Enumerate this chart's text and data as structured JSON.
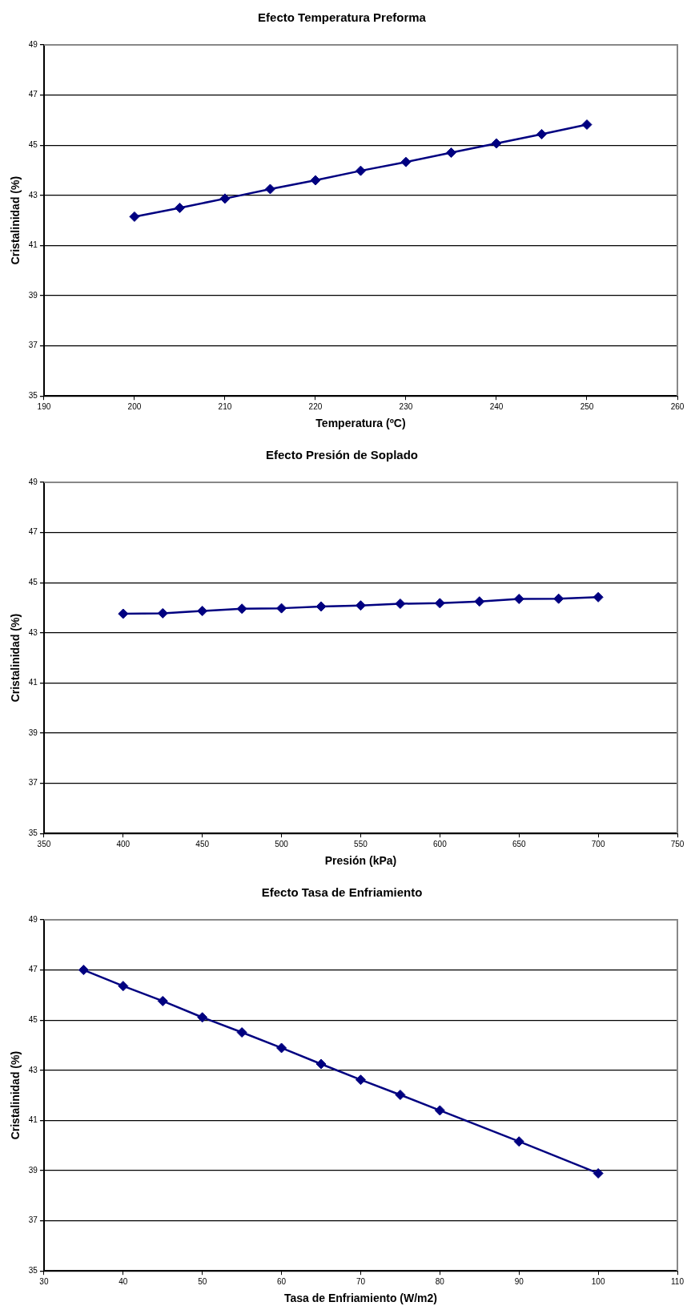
{
  "chart_data": [
    {
      "type": "line",
      "title": "Efecto Temperatura Preforma",
      "xlabel": "Temperatura (ºC)",
      "ylabel": "Cristalinidad (%)",
      "x": [
        200,
        205,
        210,
        215,
        220,
        225,
        230,
        235,
        240,
        245,
        250
      ],
      "series": [
        {
          "color": "#000080",
          "values": [
            42.15,
            42.5,
            42.87,
            43.25,
            43.6,
            43.98,
            44.33,
            44.7,
            45.07,
            45.44,
            45.82
          ]
        }
      ],
      "xlim": [
        190,
        260
      ],
      "xticks": [
        190,
        200,
        210,
        220,
        230,
        240,
        250,
        260
      ],
      "ylim": [
        35,
        49
      ],
      "yticks": [
        35,
        37,
        39,
        41,
        43,
        45,
        47,
        49
      ],
      "grid": "y",
      "legend": false,
      "marker": "diamond",
      "line_style": "solid"
    },
    {
      "type": "line",
      "title": "Efecto Presión de Soplado",
      "xlabel": "Presión (kPa)",
      "ylabel": "Cristalinidad (%)",
      "x": [
        400,
        425,
        450,
        475,
        500,
        525,
        550,
        575,
        600,
        625,
        650,
        675,
        700
      ],
      "series": [
        {
          "color": "#000080",
          "values": [
            43.76,
            43.78,
            43.87,
            43.96,
            43.98,
            44.05,
            44.09,
            44.16,
            44.18,
            44.25,
            44.35,
            44.36,
            44.42
          ]
        }
      ],
      "xlim": [
        350,
        750
      ],
      "xticks": [
        350,
        400,
        450,
        500,
        550,
        600,
        650,
        700,
        750
      ],
      "ylim": [
        35,
        49
      ],
      "yticks": [
        35,
        37,
        39,
        41,
        43,
        45,
        47,
        49
      ],
      "grid": "y",
      "legend": false,
      "marker": "diamond",
      "line_style": "solid"
    },
    {
      "type": "line",
      "title": "Efecto Tasa de Enfriamiento",
      "xlabel": "Tasa de Enfriamiento (W/m2)",
      "ylabel": "Cristalinidad (%)",
      "x": [
        35,
        40,
        45,
        50,
        55,
        60,
        65,
        70,
        75,
        80,
        90,
        100
      ],
      "series": [
        {
          "color": "#000080",
          "values": [
            47.0,
            46.36,
            45.76,
            45.11,
            44.51,
            43.89,
            43.25,
            42.62,
            42.02,
            41.4,
            40.16,
            38.89
          ]
        }
      ],
      "xlim": [
        30,
        110
      ],
      "xticks": [
        30,
        40,
        50,
        60,
        70,
        80,
        90,
        100,
        110
      ],
      "ylim": [
        35,
        49
      ],
      "yticks": [
        35,
        37,
        39,
        41,
        43,
        45,
        47,
        49
      ],
      "grid": "y",
      "legend": false,
      "marker": "diamond",
      "line_style": "solid"
    }
  ]
}
